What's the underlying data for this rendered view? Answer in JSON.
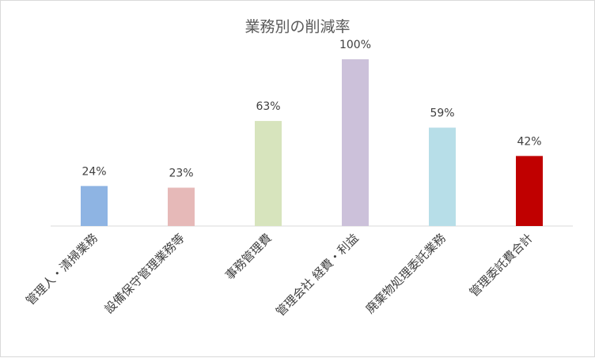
{
  "chart_data": {
    "type": "bar",
    "title": "業務別の削減率",
    "categories": [
      "管理人・清掃業務",
      "設備保守管理業務等",
      "事務管理費",
      "管理会社 経費・利益",
      "廃棄物処理委託業務",
      "管理委託費合計"
    ],
    "values": [
      24,
      23,
      63,
      100,
      59,
      42
    ],
    "data_labels": [
      "24%",
      "23%",
      "63%",
      "100%",
      "59%",
      "42%"
    ],
    "colors": [
      "#8eb4e3",
      "#e6b9b8",
      "#d7e4bd",
      "#ccc1da",
      "#b7dee8",
      "#c00000"
    ],
    "ylim": [
      0,
      100
    ],
    "grid": false,
    "legend": "none",
    "xlabel": "",
    "ylabel": ""
  }
}
